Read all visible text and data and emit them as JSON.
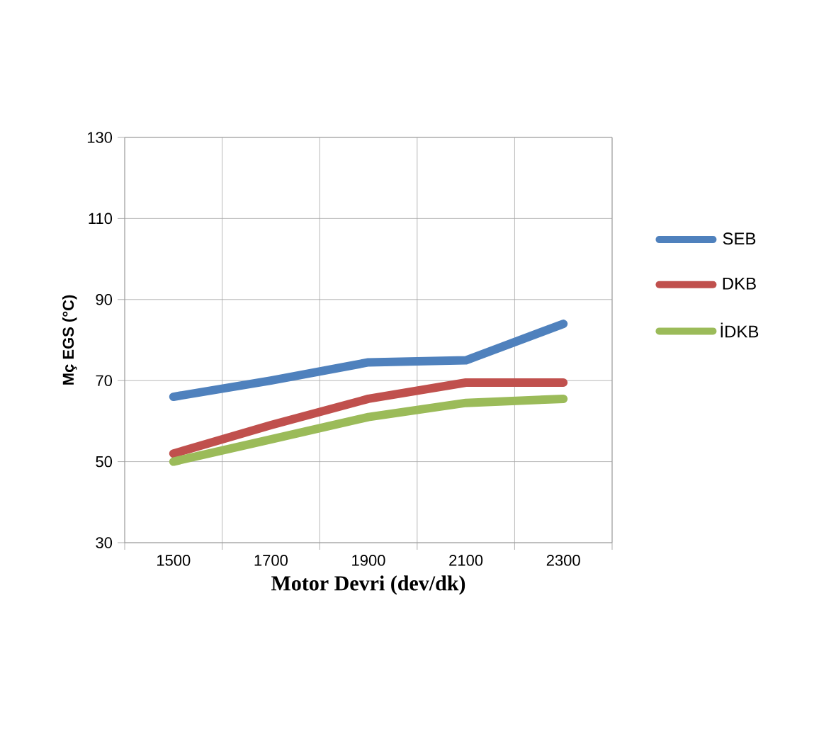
{
  "chart_data": {
    "type": "line",
    "xlabel": "Motor Devri (dev/dk)",
    "ylabel": "Mç EGS (°C)",
    "categories": [
      "1500",
      "1700",
      "1900",
      "2100",
      "2300"
    ],
    "series": [
      {
        "name": "SEB",
        "color": "#4f81bd",
        "values": [
          66,
          70,
          74.5,
          75,
          84
        ]
      },
      {
        "name": "DKB",
        "color": "#c0504d",
        "values": [
          52,
          59,
          65.5,
          69.5,
          69.5
        ]
      },
      {
        "name": "İDKB",
        "color": "#9bbb59",
        "values": [
          50,
          55.5,
          61,
          64.5,
          65.5
        ]
      }
    ],
    "ylim": [
      30,
      130
    ],
    "yticks": [
      30,
      50,
      70,
      90,
      110,
      130
    ],
    "grid": true,
    "legend": "right",
    "marker": "none",
    "line_style": "solid"
  }
}
